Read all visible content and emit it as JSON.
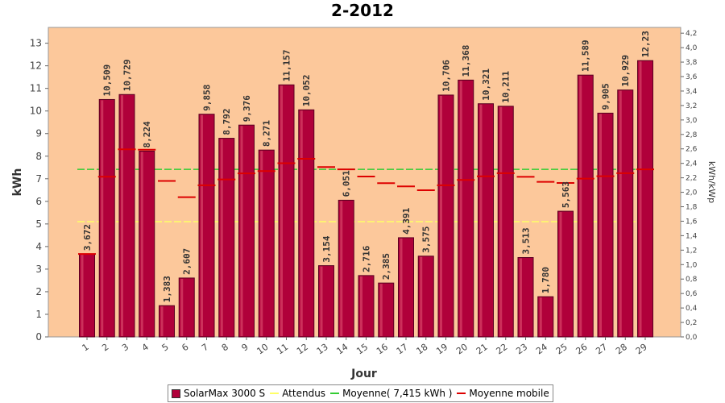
{
  "chart_data": {
    "type": "bar",
    "title": "2-2012",
    "xlabel": "Jour",
    "ylabel": "kWh",
    "y2label": "kWh/kWp",
    "ylim": [
      0,
      13.7
    ],
    "y2lim": [
      0,
      4.28
    ],
    "yticks": [
      0,
      1,
      2,
      3,
      4,
      5,
      6,
      7,
      8,
      9,
      10,
      11,
      12,
      13
    ],
    "y2ticks": [
      "0,0",
      "0,2",
      "0,4",
      "0,6",
      "0,8",
      "1,0",
      "1,2",
      "1,4",
      "1,6",
      "1,8",
      "2,0",
      "2,2",
      "2,4",
      "2,6",
      "2,8",
      "3,0",
      "3,2",
      "3,4",
      "3,6",
      "3,8",
      "4,0",
      "4,2"
    ],
    "categories": [
      "1",
      "2",
      "3",
      "4",
      "5",
      "6",
      "7",
      "8",
      "9",
      "10",
      "11",
      "12",
      "13",
      "14",
      "15",
      "16",
      "17",
      "18",
      "19",
      "20",
      "21",
      "22",
      "23",
      "24",
      "25",
      "26",
      "27",
      "28",
      "29"
    ],
    "series": [
      {
        "name": "SolarMax 3000 S",
        "values": [
          3.672,
          10.509,
          10.729,
          8.224,
          1.383,
          2.607,
          9.858,
          8.792,
          9.376,
          8.271,
          11.157,
          10.052,
          3.154,
          6.051,
          2.716,
          2.385,
          4.391,
          3.575,
          10.706,
          11.368,
          10.321,
          10.211,
          3.513,
          1.78,
          5.563,
          11.589,
          9.905,
          10.929,
          12.23
        ],
        "labels": [
          "3,672",
          "10,509",
          "10,729",
          "8,224",
          "1,383",
          "2,607",
          "9,858",
          "8,792",
          "9,376",
          "8,271",
          "11,157",
          "10,052",
          "3,154",
          "6,051",
          "2,716",
          "2,385",
          "4,391",
          "3,575",
          "10,706",
          "11,368",
          "10,321",
          "10,211",
          "3,513",
          "1,780",
          "5,563",
          "11,589",
          "9,905",
          "10,929",
          "12,23"
        ]
      },
      {
        "name": "Attendus",
        "constant": 5.1
      },
      {
        "name": "Moyenne( 7,415 kWh )",
        "constant": 7.415
      },
      {
        "name": "Moyenne mobile",
        "values": [
          3.672,
          7.09,
          8.303,
          8.284,
          6.903,
          6.187,
          6.711,
          6.971,
          7.238,
          7.342,
          7.689,
          7.885,
          7.521,
          7.416,
          7.1,
          6.805,
          6.663,
          6.491,
          6.713,
          6.946,
          7.107,
          7.247,
          7.085,
          6.864,
          6.813,
          7.006,
          7.113,
          7.249,
          7.415
        ]
      }
    ],
    "legend_position": "bottom",
    "grid": false,
    "colors": {
      "plot_background": "#fcc89b",
      "bar": "#b0003a",
      "bar_edge": "#5a0020",
      "attendus": "#ffff66",
      "moyenne": "#33cc33",
      "moyenne_mobile": "#dd0000"
    }
  }
}
